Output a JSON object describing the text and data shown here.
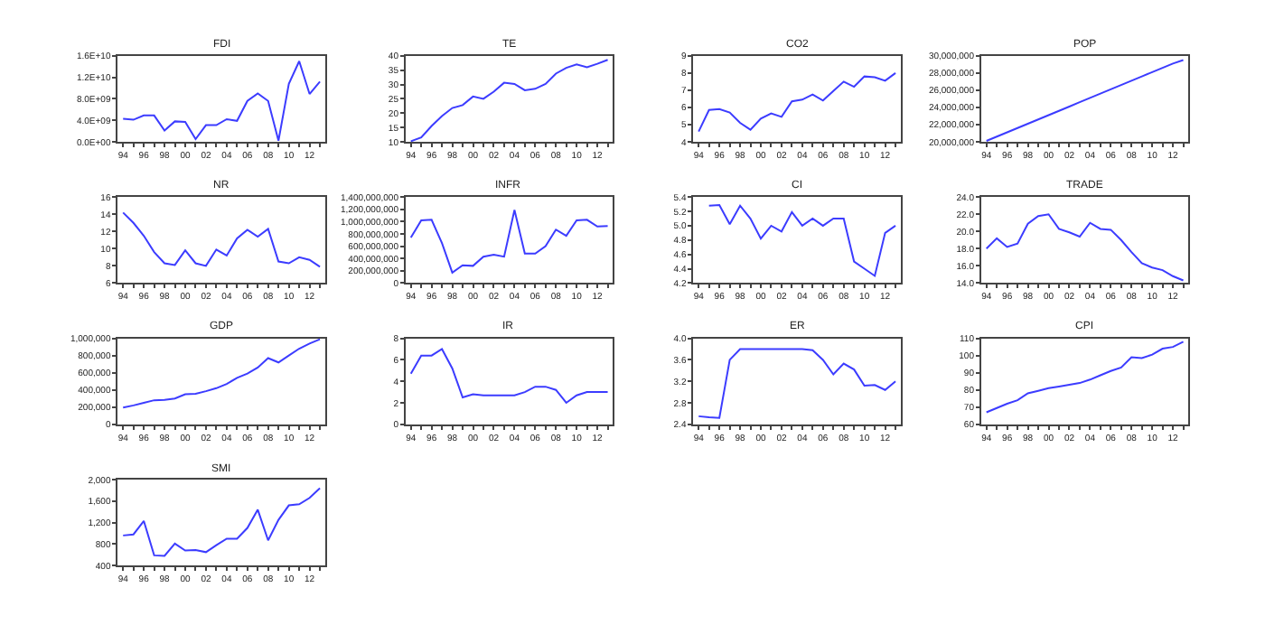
{
  "chart_data": [
    {
      "type": "line",
      "title": "FDI",
      "categories": [
        "94",
        null,
        "96",
        null,
        "98",
        null,
        "00",
        null,
        "02",
        null,
        "04",
        null,
        "06",
        null,
        "08",
        null,
        "10",
        null,
        "12",
        null
      ],
      "values": [
        4300000000.0,
        4100000000.0,
        4900000000.0,
        4900000000.0,
        2100000000.0,
        3800000000.0,
        3700000000.0,
        500000000.0,
        3100000000.0,
        3100000000.0,
        4200000000.0,
        3900000000.0,
        7600000000.0,
        9000000000.0,
        7600000000.0,
        200000000.0,
        10800000000.0,
        15000000000.0,
        8900000000.0,
        11200000000.0
      ],
      "color": "#3c3cff",
      "ylim": [
        0,
        16000000000.0
      ],
      "yticks": [
        {
          "value": 0,
          "label": "0.0E+00"
        },
        {
          "value": 4000000000.0,
          "label": "4.0E+09"
        },
        {
          "value": 8000000000.0,
          "label": "8.0E+09"
        },
        {
          "value": 12000000000.0,
          "label": "1.2E+10"
        },
        {
          "value": 16000000000.0,
          "label": "1.6E+10"
        }
      ]
    },
    {
      "type": "line",
      "title": "TE",
      "categories": [
        "94",
        null,
        "96",
        null,
        "98",
        null,
        "00",
        null,
        "02",
        null,
        "04",
        null,
        "06",
        null,
        "08",
        null,
        "10",
        null,
        "12",
        null
      ],
      "values": [
        10.2,
        11.5,
        15.5,
        19,
        21.8,
        22.8,
        25.8,
        25,
        27.5,
        30.6,
        30.2,
        28,
        28.5,
        30.2,
        33.8,
        35.8,
        37,
        36,
        37.2,
        38.6
      ],
      "color": "#3c3cff",
      "ylim": [
        10,
        40
      ],
      "yticks": [
        10,
        15,
        20,
        25,
        30,
        35,
        40
      ]
    },
    {
      "type": "line",
      "title": "CO2",
      "categories": [
        "94",
        null,
        "96",
        null,
        "98",
        null,
        "00",
        null,
        "02",
        null,
        "04",
        null,
        "06",
        null,
        "08",
        null,
        "10",
        null,
        "12",
        null
      ],
      "values": [
        4.6,
        5.85,
        5.9,
        5.7,
        5.1,
        4.7,
        5.35,
        5.65,
        5.45,
        6.35,
        6.45,
        6.75,
        6.4,
        6.95,
        7.5,
        7.2,
        7.8,
        7.75,
        7.55,
        8.0
      ],
      "color": "#3c3cff",
      "ylim": [
        4,
        9
      ],
      "yticks": [
        4,
        5,
        6,
        7,
        8,
        9
      ]
    },
    {
      "type": "line",
      "title": "POP",
      "categories": [
        "94",
        null,
        "96",
        null,
        "98",
        null,
        "00",
        null,
        "02",
        null,
        "04",
        null,
        "06",
        null,
        "08",
        null,
        "10",
        null,
        "12",
        null
      ],
      "values": [
        20100000,
        20600000,
        21100000,
        21600000,
        22100000,
        22600000,
        23100000,
        23600000,
        24100000,
        24600000,
        25100000,
        25600000,
        26100000,
        26600000,
        27100000,
        27600000,
        28100000,
        28600000,
        29100000,
        29500000
      ],
      "color": "#3c3cff",
      "ylim": [
        20000000,
        30000000
      ],
      "yticks": [
        {
          "value": 20000000,
          "label": "20,000,000"
        },
        {
          "value": 22000000,
          "label": "22,000,000"
        },
        {
          "value": 24000000,
          "label": "24,000,000"
        },
        {
          "value": 26000000,
          "label": "26,000,000"
        },
        {
          "value": 28000000,
          "label": "28,000,000"
        },
        {
          "value": 30000000,
          "label": "30,000,000"
        }
      ]
    },
    {
      "type": "line",
      "title": "NR",
      "categories": [
        "94",
        null,
        "96",
        null,
        "98",
        null,
        "00",
        null,
        "02",
        null,
        "04",
        null,
        "06",
        null,
        "08",
        null,
        "10",
        null,
        "12",
        null
      ],
      "values": [
        14.2,
        13,
        11.5,
        9.6,
        8.3,
        8.1,
        9.8,
        8.3,
        8.0,
        9.9,
        9.2,
        11.2,
        12.2,
        11.4,
        12.3,
        8.5,
        8.3,
        9.0,
        8.7,
        7.9
      ],
      "color": "#3c3cff",
      "ylim": [
        6,
        16
      ],
      "yticks": [
        6,
        8,
        10,
        12,
        14,
        16
      ]
    },
    {
      "type": "line",
      "title": "INFR",
      "categories": [
        "94",
        null,
        "96",
        null,
        "98",
        null,
        "00",
        null,
        "02",
        null,
        "04",
        null,
        "06",
        null,
        "08",
        null,
        "10",
        null,
        "12",
        null
      ],
      "values": [
        740000000.0,
        1020000000.0,
        1030000000.0,
        650000000.0,
        170000000.0,
        290000000.0,
        280000000.0,
        430000000.0,
        460000000.0,
        430000000.0,
        1190000000.0,
        480000000.0,
        480000000.0,
        600000000.0,
        870000000.0,
        770000000.0,
        1020000000.0,
        1030000000.0,
        920000000.0,
        930000000.0
      ],
      "color": "#3c3cff",
      "ylim": [
        0,
        1400000000.0
      ],
      "yticks": [
        {
          "value": 0,
          "label": "0"
        },
        {
          "value": 200000000.0,
          "label": "200,000,000"
        },
        {
          "value": 400000000.0,
          "label": "400,000,000"
        },
        {
          "value": 600000000.0,
          "label": "600,000,000"
        },
        {
          "value": 800000000.0,
          "label": "800,000,000"
        },
        {
          "value": 1000000000.0,
          "label": "1,000,000,000"
        },
        {
          "value": 1200000000.0,
          "label": "1,200,000,000"
        },
        {
          "value": 1400000000.0,
          "label": "1,400,000,000"
        }
      ]
    },
    {
      "type": "line",
      "title": "CI",
      "categories": [
        "94",
        null,
        "96",
        null,
        "98",
        null,
        "00",
        null,
        "02",
        null,
        "04",
        null,
        "06",
        null,
        "08",
        null,
        "10",
        null,
        "12",
        null
      ],
      "values": [
        null,
        5.28,
        5.29,
        5.02,
        5.28,
        5.1,
        4.82,
        5.0,
        4.92,
        5.19,
        5.0,
        5.1,
        5.0,
        5.1,
        5.1,
        4.5,
        4.4,
        4.3,
        4.9,
        5.0
      ],
      "color": "#3c3cff",
      "ylim": [
        4.2,
        5.4
      ],
      "yticks": [
        {
          "value": 4.2,
          "label": "4.2"
        },
        {
          "value": 4.4,
          "label": "4.4"
        },
        {
          "value": 4.6,
          "label": "4.6"
        },
        {
          "value": 4.8,
          "label": "4.8"
        },
        {
          "value": 5.0,
          "label": "5.0"
        },
        {
          "value": 5.2,
          "label": "5.2"
        },
        {
          "value": 5.4,
          "label": "5.4"
        }
      ]
    },
    {
      "type": "line",
      "title": "TRADE",
      "categories": [
        "94",
        null,
        "96",
        null,
        "98",
        null,
        "00",
        null,
        "02",
        null,
        "04",
        null,
        "06",
        null,
        "08",
        null,
        "10",
        null,
        "12",
        null
      ],
      "values": [
        18.0,
        19.2,
        18.2,
        18.6,
        20.9,
        21.8,
        22.0,
        20.3,
        19.9,
        19.4,
        21.0,
        20.3,
        20.2,
        19.0,
        17.6,
        16.3,
        15.8,
        15.5,
        14.8,
        14.3
      ],
      "color": "#3c3cff",
      "ylim": [
        14,
        24
      ],
      "yticks": [
        {
          "value": 14,
          "label": "14.0"
        },
        {
          "value": 16,
          "label": "16.0"
        },
        {
          "value": 18,
          "label": "18.0"
        },
        {
          "value": 20,
          "label": "20.0"
        },
        {
          "value": 22,
          "label": "22.0"
        },
        {
          "value": 24,
          "label": "24.0"
        }
      ]
    },
    {
      "type": "line",
      "title": "GDP",
      "categories": [
        "94",
        null,
        "96",
        null,
        "98",
        null,
        "00",
        null,
        "02",
        null,
        "04",
        null,
        "06",
        null,
        "08",
        null,
        "10",
        null,
        "12",
        null
      ],
      "values": [
        195000,
        220000,
        250000,
        280000,
        285000,
        300000,
        350000,
        355000,
        385000,
        420000,
        470000,
        540000,
        590000,
        660000,
        770000,
        720000,
        800000,
        880000,
        940000,
        990000
      ],
      "color": "#3c3cff",
      "ylim": [
        0,
        1000000
      ],
      "yticks": [
        {
          "value": 0,
          "label": "0"
        },
        {
          "value": 200000,
          "label": "200,000"
        },
        {
          "value": 400000,
          "label": "400,000"
        },
        {
          "value": 600000,
          "label": "600,000"
        },
        {
          "value": 800000,
          "label": "800,000"
        },
        {
          "value": 1000000,
          "label": "1,000,000"
        }
      ]
    },
    {
      "type": "line",
      "title": "IR",
      "categories": [
        "94",
        null,
        "96",
        null,
        "98",
        null,
        "00",
        null,
        "02",
        null,
        "04",
        null,
        "06",
        null,
        "08",
        null,
        "10",
        null,
        "12",
        null
      ],
      "values": [
        4.7,
        6.4,
        6.4,
        7.0,
        5.2,
        2.5,
        2.8,
        2.7,
        2.7,
        2.7,
        2.7,
        3.0,
        3.5,
        3.5,
        3.2,
        2.0,
        2.7,
        3.0,
        3.0,
        3.0
      ],
      "color": "#3c3cff",
      "ylim": [
        0,
        8
      ],
      "yticks": [
        0,
        2,
        4,
        6,
        8
      ]
    },
    {
      "type": "line",
      "title": "ER",
      "categories": [
        "94",
        null,
        "96",
        null,
        "98",
        null,
        "00",
        null,
        "02",
        null,
        "04",
        null,
        "06",
        null,
        "08",
        null,
        "10",
        null,
        "12",
        null
      ],
      "values": [
        2.55,
        2.53,
        2.52,
        3.6,
        3.8,
        3.8,
        3.8,
        3.8,
        3.8,
        3.8,
        3.8,
        3.78,
        3.6,
        3.33,
        3.53,
        3.42,
        3.12,
        3.13,
        3.04,
        3.2
      ],
      "color": "#3c3cff",
      "ylim": [
        2.4,
        4.0
      ],
      "yticks": [
        {
          "value": 2.4,
          "label": "2.4"
        },
        {
          "value": 2.8,
          "label": "2.8"
        },
        {
          "value": 3.2,
          "label": "3.2"
        },
        {
          "value": 3.6,
          "label": "3.6"
        },
        {
          "value": 4.0,
          "label": "4.0"
        }
      ]
    },
    {
      "type": "line",
      "title": "CPI",
      "categories": [
        "94",
        null,
        "96",
        null,
        "98",
        null,
        "00",
        null,
        "02",
        null,
        "04",
        null,
        "06",
        null,
        "08",
        null,
        "10",
        null,
        "12",
        null
      ],
      "values": [
        67,
        69.5,
        72,
        74,
        78,
        79.5,
        81,
        82,
        83,
        84,
        86,
        88.5,
        91,
        93,
        99,
        98.5,
        100.5,
        104,
        105,
        108
      ],
      "color": "#3c3cff",
      "ylim": [
        60,
        110
      ],
      "yticks": [
        60,
        70,
        80,
        90,
        100,
        110
      ]
    },
    {
      "type": "line",
      "title": "SMI",
      "categories": [
        "94",
        null,
        "96",
        null,
        "98",
        null,
        "00",
        null,
        "02",
        null,
        "04",
        null,
        "06",
        null,
        "08",
        null,
        "10",
        null,
        "12",
        null
      ],
      "values": [
        960,
        980,
        1230,
        590,
        580,
        810,
        680,
        690,
        650,
        780,
        900,
        900,
        1100,
        1440,
        870,
        1250,
        1520,
        1540,
        1660,
        1840
      ],
      "color": "#3c3cff",
      "ylim": [
        400,
        2000
      ],
      "yticks": [
        {
          "value": 400,
          "label": "400"
        },
        {
          "value": 800,
          "label": "800"
        },
        {
          "value": 1200,
          "label": "1,200"
        },
        {
          "value": 1600,
          "label": "1,600"
        },
        {
          "value": 2000,
          "label": "2,000"
        }
      ]
    }
  ]
}
